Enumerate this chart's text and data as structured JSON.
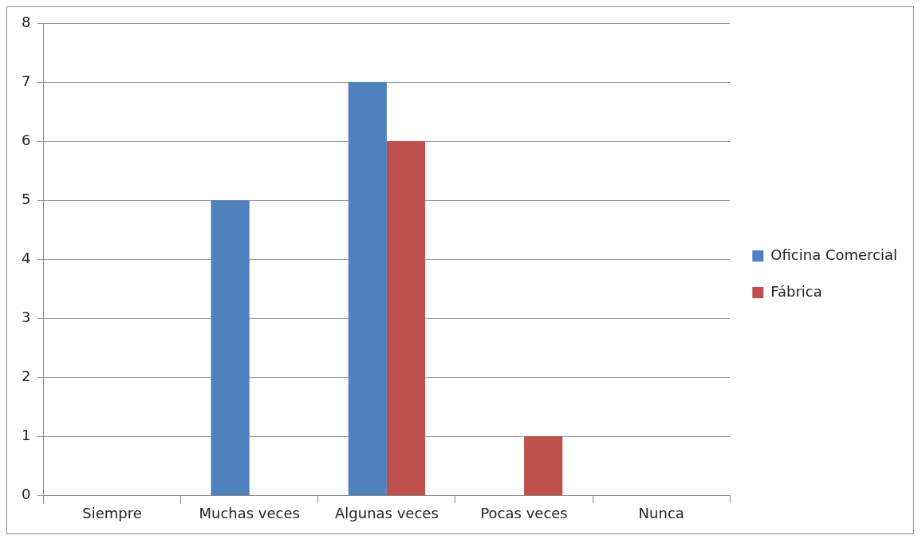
{
  "chart_data": {
    "type": "bar",
    "categories": [
      "Siempre",
      "Muchas veces",
      "Algunas veces",
      "Pocas veces",
      "Nunca"
    ],
    "series": [
      {
        "name": "Oficina Comercial",
        "color": "#4f81bd",
        "values": [
          0,
          5,
          7,
          0,
          0
        ]
      },
      {
        "name": "Fábrica",
        "color": "#c0504d",
        "values": [
          0,
          0,
          6,
          1,
          0
        ]
      }
    ],
    "ylim": [
      0,
      8
    ],
    "yticks": [
      0,
      1,
      2,
      3,
      4,
      5,
      6,
      7,
      8
    ],
    "grid": "y",
    "legend": "right"
  }
}
